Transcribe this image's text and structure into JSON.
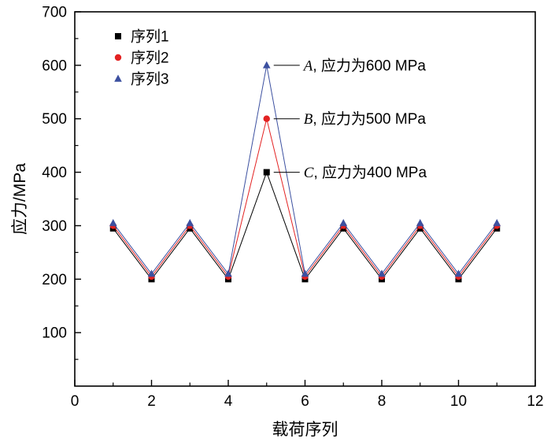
{
  "chart_data": {
    "type": "line",
    "x": [
      1,
      2,
      3,
      4,
      5,
      6,
      7,
      8,
      9,
      10,
      11
    ],
    "series": [
      {
        "name": "序列1",
        "color": "#000000",
        "marker": "square",
        "values": [
          295,
          200,
          295,
          200,
          400,
          200,
          295,
          200,
          295,
          200,
          295
        ]
      },
      {
        "name": "序列2",
        "color": "#e32222",
        "marker": "circle",
        "values": [
          300,
          205,
          300,
          205,
          500,
          205,
          300,
          205,
          300,
          205,
          300
        ]
      },
      {
        "name": "序列3",
        "color": "#3c50a0",
        "marker": "triangle",
        "values": [
          305,
          210,
          305,
          210,
          600,
          210,
          305,
          210,
          305,
          210,
          305
        ]
      }
    ],
    "xlabel": "载荷序列",
    "ylabel": "应力/MPa",
    "xlim": [
      0,
      12
    ],
    "ylim": [
      0,
      700
    ],
    "xticks": [
      0,
      2,
      4,
      6,
      8,
      10,
      12
    ],
    "x_minor_ticks": [
      1,
      3,
      5,
      7,
      9,
      11
    ],
    "yticks": [
      100,
      200,
      300,
      400,
      500,
      600,
      700
    ],
    "y_minor_ticks": [
      50,
      150,
      250,
      350,
      450,
      550,
      650
    ],
    "grid": false,
    "legend_position": "upper-left",
    "annotations": [
      {
        "label": "A",
        "text": ", 应力为600 MPa",
        "x": 5,
        "y": 600
      },
      {
        "label": "B",
        "text": ", 应力为500 MPa",
        "x": 5,
        "y": 500
      },
      {
        "label": "C",
        "text": ", 应力为400 MPa",
        "x": 5,
        "y": 400
      }
    ],
    "axis_color": "#000000",
    "text_color": "#000000"
  }
}
